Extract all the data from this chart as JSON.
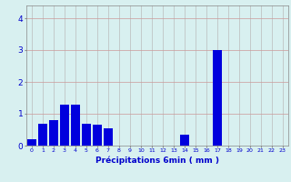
{
  "values": [
    0.2,
    0.7,
    0.8,
    1.3,
    1.3,
    0.7,
    0.65,
    0.55,
    0.0,
    0.0,
    0.0,
    0.0,
    0.0,
    0.0,
    0.35,
    0.0,
    0.0,
    3.0,
    0.0,
    0.0,
    0.0,
    0.0,
    0.0,
    0.0
  ],
  "bar_color": "#0000dd",
  "background_color": "#d8f0f0",
  "grid_color": "#bbbbbb",
  "xlabel": "Précipitations 6min ( mm )",
  "xlabel_color": "#0000cc",
  "yticks": [
    0,
    1,
    2,
    3,
    4
  ],
  "ylim": [
    0,
    4.4
  ],
  "xlim": [
    -0.5,
    23.5
  ],
  "bar_width": 0.85,
  "tick_fontsize": 4.5,
  "xlabel_fontsize": 6.5,
  "ylabel_fontsize": 6.5
}
